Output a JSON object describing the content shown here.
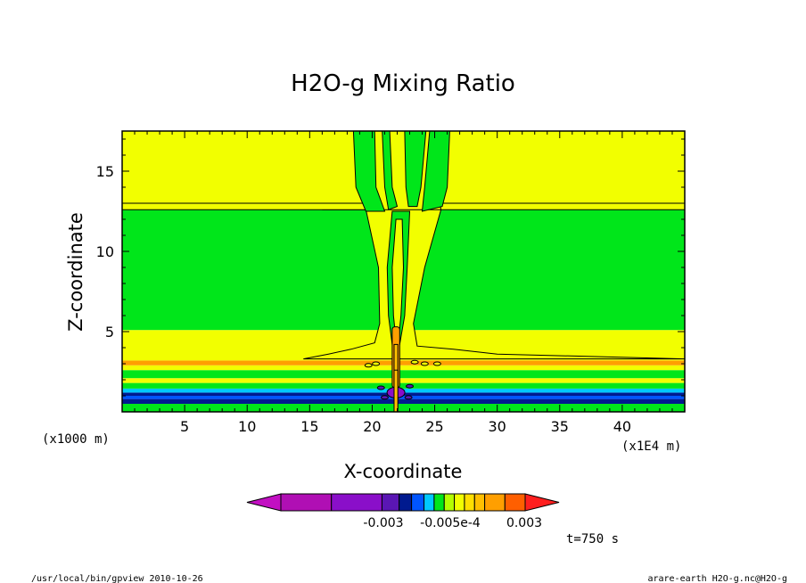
{
  "chart_data": {
    "type": "contour",
    "title": "H2O-g Mixing Ratio",
    "xlabel": "X-coordinate",
    "ylabel": "Z-coordinate",
    "x_unit_left": "(x1000 m)",
    "x_unit_right": "(x1E4 m)",
    "xlim": [
      0,
      45
    ],
    "ylim": [
      0,
      17.5
    ],
    "x_ticks": [
      5,
      10,
      15,
      20,
      25,
      30,
      35,
      40
    ],
    "y_ticks": [
      5,
      10,
      15
    ],
    "time_label": "t=750 s",
    "colors": {
      "yellow": "#f2ff00",
      "green": "#00e61a",
      "orange": "#ff9f00",
      "lightorange": "#ffbf00",
      "navy": "#001a8f",
      "blue": "#0055ff",
      "cyan": "#00c8ff",
      "purple": "#5a16b4",
      "violet": "#8a0fc9"
    },
    "horizontal_bands": [
      {
        "z0": 0.0,
        "z1": 0.5,
        "color": "green"
      },
      {
        "z0": 0.5,
        "z1": 0.8,
        "color": "navy"
      },
      {
        "z0": 0.8,
        "z1": 1.0,
        "color": "blue"
      },
      {
        "z0": 1.0,
        "z1": 1.2,
        "color": "navy"
      },
      {
        "z0": 1.2,
        "z1": 1.45,
        "color": "cyan"
      },
      {
        "z0": 1.45,
        "z1": 1.8,
        "color": "green"
      },
      {
        "z0": 1.8,
        "z1": 2.1,
        "color": "yellow"
      },
      {
        "z0": 2.1,
        "z1": 2.6,
        "color": "green"
      },
      {
        "z0": 2.6,
        "z1": 2.9,
        "color": "yellow"
      },
      {
        "z0": 2.9,
        "z1": 3.2,
        "color": "orange"
      },
      {
        "z0": 3.2,
        "z1": 5.1,
        "color": "yellow"
      },
      {
        "z0": 5.1,
        "z1": 12.6,
        "color": "green"
      },
      {
        "z0": 12.6,
        "z1": 17.5,
        "color": "yellow"
      }
    ],
    "colorbar": {
      "colors": [
        "#c20fc2",
        "#b00fb4",
        "#8a0fc9",
        "#5a16b4",
        "#001a8f",
        "#0055ff",
        "#00c8ff",
        "#00e61a",
        "#b4ff00",
        "#f2ff00",
        "#ffdf00",
        "#ffbf00",
        "#ff9f00",
        "#ff5f00",
        "#ff1f1f"
      ],
      "labels": [
        "-0.003",
        "-0.005e-4",
        "0.003"
      ]
    },
    "footer_left": "/usr/local/bin/gpview  2010-10-26",
    "footer_right": "arare-earth_H2O-g.nc@H2O-g"
  }
}
